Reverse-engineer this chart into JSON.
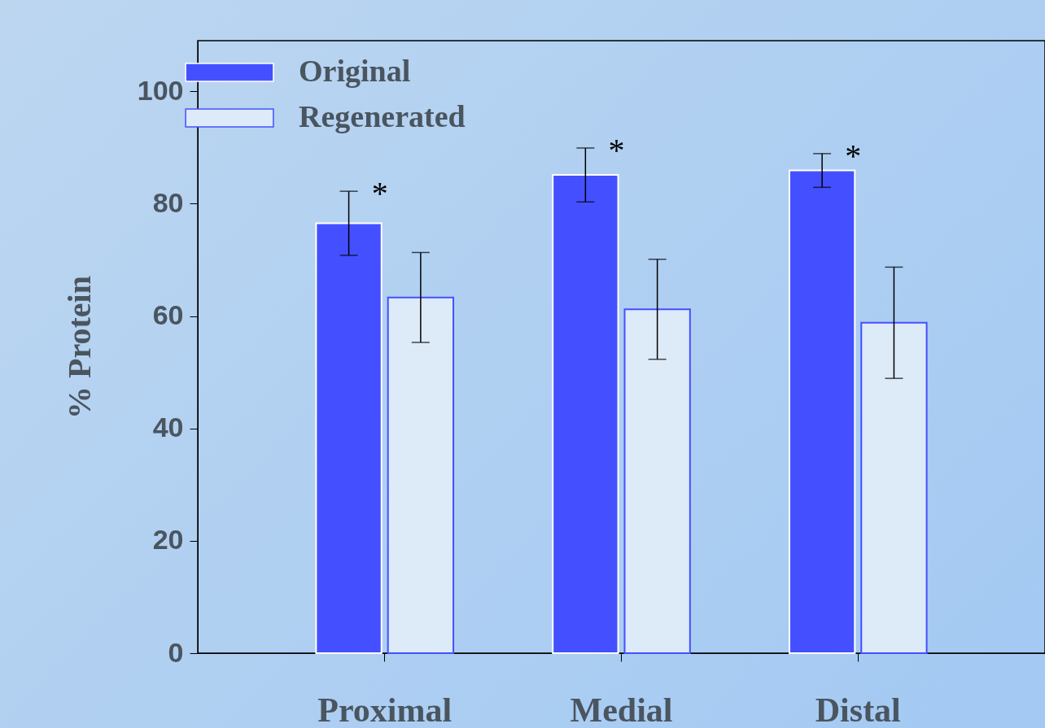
{
  "chart_data": {
    "type": "bar",
    "ylabel": "% Protein",
    "categories": [
      "Proximal",
      "Medial",
      "Distal"
    ],
    "series": [
      {
        "name": "Original",
        "color": "#4450ff",
        "values": [
          76.5,
          85.1,
          85.9
        ],
        "errors": [
          5.7,
          4.8,
          3.0
        ]
      },
      {
        "name": "Regenerated",
        "color": "#ddeaf8",
        "values": [
          63.3,
          61.2,
          58.8
        ],
        "errors": [
          8.0,
          8.9,
          9.9
        ]
      }
    ],
    "ylim": [
      0,
      109
    ],
    "yticks": [
      0,
      20,
      40,
      60,
      80,
      100
    ],
    "grid": false,
    "legend": "top left",
    "annotations": [
      "*",
      "*",
      "*"
    ]
  }
}
